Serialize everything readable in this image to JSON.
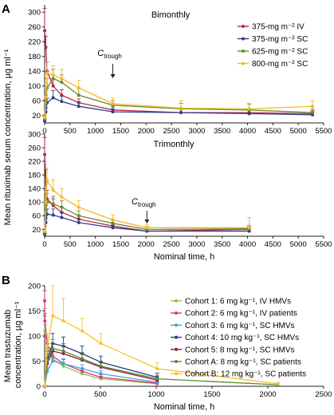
{
  "figure": {
    "panels": [
      "A",
      "B"
    ],
    "panel_a_ylabel": "Mean rituximab serum concentration, µg ml⁻¹",
    "panel_b_ylabel": "Mean trastuzumab\nconcentration, µg ml⁻¹",
    "ctrough_label": "C",
    "ctrough_sub": "trough"
  },
  "chart_data": [
    {
      "type": "line",
      "panel": "A",
      "title": "Bimonthly",
      "xlabel": "",
      "xlim": [
        0,
        5500
      ],
      "ylim": [
        0,
        320
      ],
      "xticks": [
        0,
        500,
        1000,
        1500,
        2000,
        2500,
        3000,
        3500,
        4000,
        4500,
        5000,
        5500
      ],
      "yticks": [
        20,
        60,
        100,
        140,
        180,
        220,
        260,
        300
      ],
      "legend": "top-right",
      "annotation": {
        "text": "Ctrough",
        "x": 1344
      },
      "series": [
        {
          "name": "375-mg m⁻² IV",
          "color": "#b5284b",
          "x": [
            1,
            24,
            48,
            168,
            336,
            672,
            1344,
            2688,
            4032,
            5280
          ],
          "y": [
            250,
            205,
            140,
            100,
            75,
            55,
            35,
            28,
            28,
            25
          ],
          "err": [
            60,
            30,
            25,
            20,
            15,
            10,
            8,
            10,
            10,
            8
          ]
        },
        {
          "name": "375-mg m⁻² SC",
          "color": "#2c3e8c",
          "x": [
            1,
            24,
            48,
            168,
            336,
            672,
            1344,
            2688,
            4032,
            5280
          ],
          "y": [
            5,
            30,
            55,
            68,
            58,
            45,
            30,
            28,
            25,
            22
          ],
          "err": [
            3,
            10,
            12,
            20,
            15,
            12,
            8,
            10,
            10,
            8
          ]
        },
        {
          "name": "625-mg m⁻² SC",
          "color": "#6c8a2e",
          "x": [
            1,
            24,
            48,
            168,
            336,
            672,
            1344,
            2688,
            4032,
            5280
          ],
          "y": [
            10,
            55,
            95,
            120,
            110,
            75,
            48,
            38,
            35,
            28
          ],
          "err": [
            5,
            20,
            25,
            25,
            20,
            18,
            12,
            15,
            15,
            10
          ]
        },
        {
          "name": "800-mg m⁻² SC",
          "color": "#f5b827",
          "x": [
            1,
            24,
            48,
            168,
            336,
            672,
            1344,
            2688,
            4032,
            5280
          ],
          "y": [
            15,
            70,
            135,
            130,
            120,
            95,
            52,
            40,
            38,
            45
          ],
          "err": [
            8,
            25,
            30,
            25,
            25,
            20,
            15,
            20,
            15,
            15
          ]
        }
      ]
    },
    {
      "type": "line",
      "panel": "A",
      "title": "Trimonthly",
      "xlabel": "Nominal time, h",
      "xlim": [
        0,
        5500
      ],
      "ylim": [
        0,
        300
      ],
      "xticks": [
        0,
        500,
        1000,
        1500,
        2000,
        2500,
        3000,
        3500,
        4000,
        4500,
        5000,
        5500
      ],
      "yticks": [
        20,
        60,
        100,
        140,
        180,
        220,
        260,
        300
      ],
      "annotation": {
        "text": "Ctrough",
        "x": 2016
      },
      "series": [
        {
          "name": "375-mg m⁻² IV",
          "color": "#b5284b",
          "x": [
            1,
            24,
            48,
            168,
            336,
            672,
            1344,
            2016,
            4032
          ],
          "y": [
            240,
            165,
            110,
            90,
            70,
            50,
            30,
            15,
            20
          ],
          "err": [
            50,
            30,
            25,
            20,
            15,
            12,
            8,
            5,
            8
          ]
        },
        {
          "name": "375-mg m⁻² SC",
          "color": "#2c3e8c",
          "x": [
            1,
            24,
            48,
            168,
            336,
            672,
            1344,
            2016,
            4032
          ],
          "y": [
            5,
            40,
            65,
            62,
            55,
            40,
            25,
            15,
            15
          ],
          "err": [
            3,
            12,
            15,
            18,
            15,
            12,
            8,
            5,
            8
          ]
        },
        {
          "name": "625-mg m⁻² SC",
          "color": "#6c8a2e",
          "x": [
            1,
            24,
            48,
            168,
            336,
            672,
            1344,
            2016,
            4032
          ],
          "y": [
            10,
            70,
            100,
            95,
            85,
            60,
            38,
            20,
            22
          ],
          "err": [
            5,
            20,
            25,
            22,
            20,
            15,
            10,
            8,
            10
          ]
        },
        {
          "name": "800-mg m⁻² SC",
          "color": "#f5b827",
          "x": [
            1,
            24,
            48,
            168,
            336,
            672,
            1344,
            2016,
            4032
          ],
          "y": [
            15,
            100,
            165,
            135,
            115,
            85,
            48,
            25,
            25
          ],
          "err": [
            8,
            30,
            35,
            30,
            25,
            20,
            15,
            10,
            30
          ]
        }
      ]
    },
    {
      "type": "line",
      "panel": "B",
      "title": "",
      "xlabel": "Nominal time, h",
      "xlim": [
        0,
        2500
      ],
      "ylim": [
        0,
        200
      ],
      "xticks": [
        0,
        500,
        1000,
        1500,
        2000,
        2500
      ],
      "yticks": [
        0,
        50,
        100,
        150,
        200
      ],
      "legend": "top-right",
      "series": [
        {
          "name": "Cohort 1: 6 mg kg⁻¹, IV HMVs",
          "color": "#8cc63f",
          "x": [
            0,
            2,
            24,
            72,
            168,
            336,
            504,
            1008
          ],
          "y": [
            140,
            110,
            75,
            55,
            40,
            25,
            15,
            5
          ],
          "err": [
            15,
            12,
            10,
            10,
            8,
            6,
            5,
            3
          ]
        },
        {
          "name": "Cohort 2: 6 mg kg⁻¹, IV patients",
          "color": "#e0347f",
          "x": [
            0,
            2,
            24,
            72,
            168,
            336,
            504,
            1008
          ],
          "y": [
            170,
            130,
            85,
            60,
            45,
            30,
            18,
            6
          ],
          "err": [
            20,
            15,
            12,
            10,
            8,
            6,
            5,
            3
          ]
        },
        {
          "name": "Cohort 3: 6 mg kg⁻¹, SC HMVs",
          "color": "#41a4d8",
          "x": [
            0,
            24,
            72,
            168,
            336,
            504,
            1008
          ],
          "y": [
            0,
            30,
            50,
            45,
            35,
            25,
            8
          ],
          "err": [
            0,
            8,
            12,
            10,
            8,
            6,
            4
          ]
        },
        {
          "name": "Cohort 4: 10 mg kg⁻¹, SC HMVs",
          "color": "#253a8a",
          "x": [
            0,
            24,
            72,
            168,
            336,
            504,
            1008
          ],
          "y": [
            0,
            55,
            85,
            80,
            65,
            48,
            18
          ],
          "err": [
            0,
            15,
            20,
            18,
            15,
            12,
            8
          ]
        },
        {
          "name": "Cohort 5: 8 mg kg⁻¹, SC HMVs",
          "color": "#8a1f3c",
          "x": [
            0,
            24,
            72,
            168,
            336,
            504,
            1008
          ],
          "y": [
            0,
            45,
            70,
            65,
            52,
            38,
            12
          ],
          "err": [
            0,
            12,
            15,
            15,
            12,
            10,
            6
          ]
        },
        {
          "name": "Cohort A: 8 mg kg⁻¹, SC patients",
          "color": "#5b8a2e",
          "x": [
            0,
            24,
            72,
            168,
            336,
            504,
            1008,
            2088
          ],
          "y": [
            0,
            50,
            75,
            70,
            55,
            40,
            15,
            3
          ],
          "err": [
            0,
            15,
            18,
            15,
            12,
            10,
            6,
            2
          ]
        },
        {
          "name": "Cohort B: 12 mg kg⁻¹, SC patients",
          "color": "#f7c22e",
          "x": [
            0,
            24,
            72,
            168,
            336,
            504,
            1008,
            2088
          ],
          "y": [
            0,
            80,
            140,
            130,
            110,
            85,
            35,
            5
          ],
          "err": [
            0,
            25,
            60,
            45,
            25,
            20,
            12,
            3
          ]
        }
      ]
    }
  ]
}
